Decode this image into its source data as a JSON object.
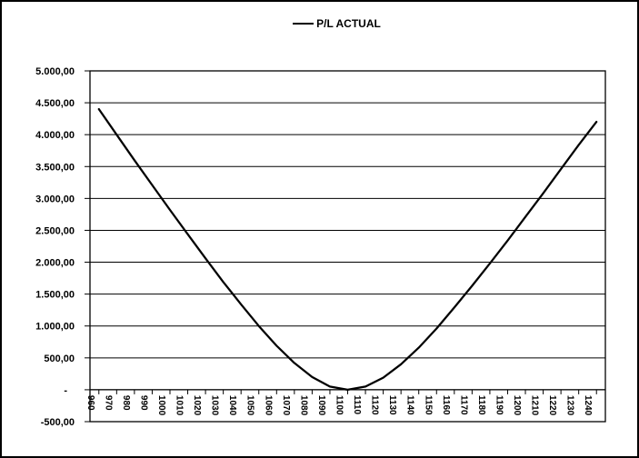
{
  "chart_data": {
    "type": "line",
    "title": "",
    "legend": "P/L ACTUAL",
    "legend_position": "top-center",
    "xlabel": "",
    "ylabel": "",
    "categories": [
      960,
      970,
      980,
      990,
      1000,
      1010,
      1020,
      1030,
      1040,
      1050,
      1060,
      1070,
      1080,
      1090,
      1100,
      1110,
      1120,
      1130,
      1140,
      1150,
      1160,
      1170,
      1180,
      1190,
      1200,
      1210,
      1220,
      1230,
      1240
    ],
    "x_tick_labels": [
      "960",
      "970",
      "980",
      "990",
      "1000",
      "1010",
      "1020",
      "1030",
      "1040",
      "1050",
      "1060",
      "1070",
      "1080",
      "1090",
      "1100",
      "1110",
      "1120",
      "1130",
      "1140",
      "1150",
      "1160",
      "1170",
      "1180",
      "1190",
      "1200",
      "1210",
      "1220",
      "1230",
      "1240"
    ],
    "series": [
      {
        "name": "P/L ACTUAL",
        "color": "#000000",
        "values": [
          4400,
          4000,
          3600,
          3210,
          2820,
          2440,
          2060,
          1690,
          1340,
          1000,
          690,
          420,
          200,
          50,
          0,
          50,
          190,
          400,
          660,
          960,
          1290,
          1630,
          1980,
          2340,
          2710,
          3080,
          3460,
          3840,
          4200
        ]
      }
    ],
    "ylim": [
      -500,
      5000
    ],
    "y_tick_step": 500,
    "y_tick_labels": [
      "5.000,00",
      "4.500,00",
      "4.000,00",
      "3.500,00",
      "3.000,00",
      "2.500,00",
      "2.000,00",
      "1.500,00",
      "1.000,00",
      "500,00",
      "-",
      "-500,00"
    ],
    "y_zero_label": "-",
    "grid": "horizontal",
    "background": "#ffffff",
    "axis_color": "#000000",
    "line_width": 2
  }
}
